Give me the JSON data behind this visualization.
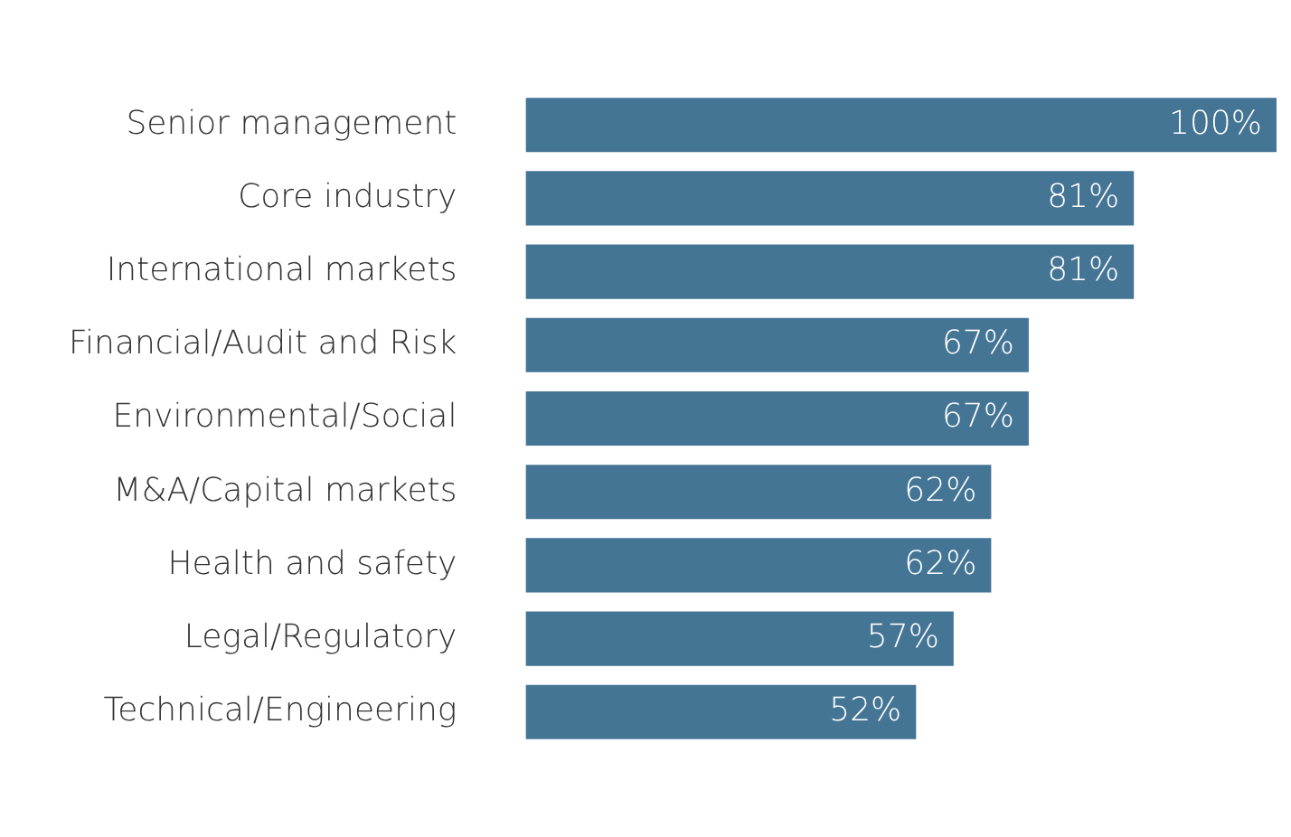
{
  "chart_data": {
    "type": "bar",
    "orientation": "horizontal",
    "categories": [
      "Senior management",
      "Core industry",
      "International markets",
      "Financial/Audit and Risk",
      "Environmental/Social",
      "M&A/Capital markets",
      "Health and safety",
      "Legal/Regulatory",
      "Technical/Engineering"
    ],
    "values": [
      100,
      81,
      81,
      67,
      67,
      62,
      62,
      57,
      52
    ],
    "value_labels": [
      "100%",
      "81%",
      "81%",
      "67%",
      "67%",
      "62%",
      "62%",
      "57%",
      "52%"
    ],
    "color": "#457595",
    "xlim": [
      0,
      100
    ]
  }
}
